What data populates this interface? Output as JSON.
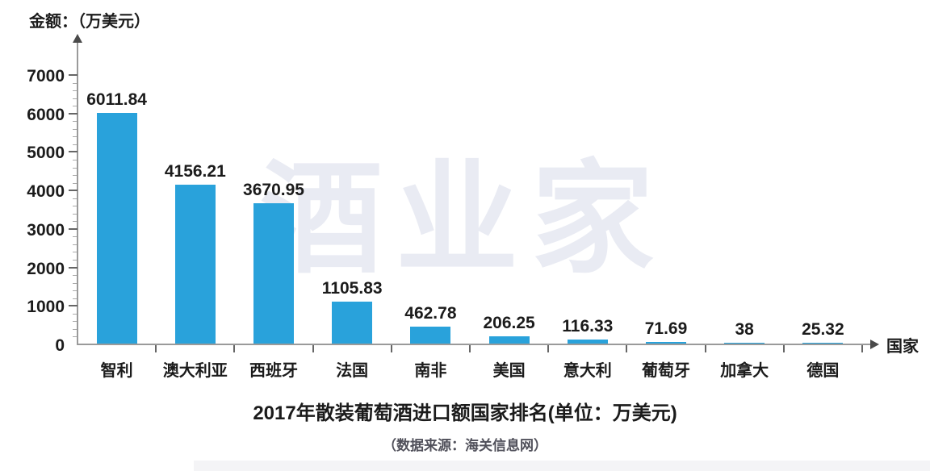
{
  "chart_data": {
    "type": "bar",
    "title": "2017年散装葡萄酒进口额国家排名(单位：万美元)",
    "source_note": "（数据来源：海关信息网）",
    "ylabel": "金额：（万美元）",
    "xlabel": "国家",
    "categories": [
      "智利",
      "澳大利亚",
      "西班牙",
      "法国",
      "南非",
      "美国",
      "意大利",
      "葡萄牙",
      "加拿大",
      "德国"
    ],
    "values": [
      6011.84,
      4156.21,
      3670.95,
      1105.83,
      462.78,
      206.25,
      116.33,
      71.69,
      38,
      25.32
    ],
    "value_labels": [
      "6011.84",
      "4156.21",
      "3670.95",
      "1105.83",
      "462.78",
      "206.25",
      "116.33",
      "71.69",
      "38",
      "25.32"
    ],
    "yticks": [
      0,
      1000,
      2000,
      3000,
      4000,
      5000,
      6000,
      7000
    ],
    "ylim": [
      0,
      7500
    ],
    "minor_tick_step": 200,
    "grid": false,
    "legend": false,
    "bar_color": "#29A2DB",
    "watermark": "酒业家"
  },
  "colors": {
    "bar": "#29A2DB",
    "text": "#1b1b1b",
    "axis": "#9a9a9a",
    "tick": "#666666",
    "watermark": "#e9ebf3",
    "subtitle": "#50505a"
  }
}
